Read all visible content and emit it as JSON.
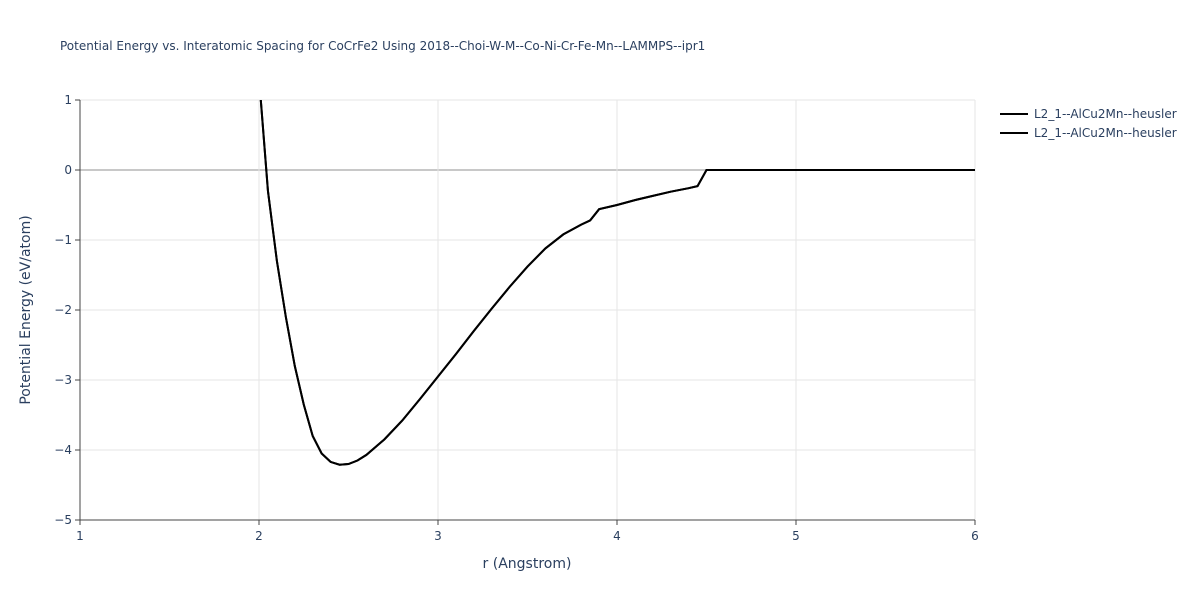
{
  "chart_data": {
    "type": "line",
    "title": "Potential Energy vs. Interatomic Spacing for CoCrFe2 Using 2018--Choi-W-M--Co-Ni-Cr-Fe-Mn--LAMMPS--ipr1",
    "x_label": "r (Angstrom)",
    "y_label": "Potential Energy (eV/atom)",
    "x": [
      2.01,
      2.05,
      2.1,
      2.15,
      2.2,
      2.25,
      2.3,
      2.35,
      2.4,
      2.45,
      2.5,
      2.55,
      2.6,
      2.7,
      2.8,
      2.9,
      3.0,
      3.1,
      3.2,
      3.3,
      3.4,
      3.5,
      3.6,
      3.7,
      3.8,
      3.85,
      3.9,
      4.0,
      4.1,
      4.2,
      4.3,
      4.4,
      4.45,
      4.5,
      5.0,
      5.5,
      6.0
    ],
    "series": [
      {
        "name": "L2_1--AlCu2Mn--heusler",
        "color": "#000000",
        "values": [
          1.0,
          -0.3,
          -1.3,
          -2.1,
          -2.8,
          -3.35,
          -3.8,
          -4.05,
          -4.17,
          -4.21,
          -4.2,
          -4.15,
          -4.07,
          -3.85,
          -3.58,
          -3.27,
          -2.95,
          -2.63,
          -2.3,
          -1.98,
          -1.67,
          -1.38,
          -1.12,
          -0.92,
          -0.78,
          -0.72,
          -0.56,
          -0.5,
          -0.43,
          -0.37,
          -0.31,
          -0.26,
          -0.23,
          0,
          0,
          0,
          0
        ]
      },
      {
        "name": "L2_1--AlCu2Mn--heusler",
        "color": "#000000",
        "values": [
          1.0,
          -0.3,
          -1.3,
          -2.1,
          -2.8,
          -3.35,
          -3.8,
          -4.05,
          -4.17,
          -4.21,
          -4.2,
          -4.15,
          -4.07,
          -3.85,
          -3.58,
          -3.27,
          -2.95,
          -2.63,
          -2.3,
          -1.98,
          -1.67,
          -1.38,
          -1.12,
          -0.92,
          -0.78,
          -0.72,
          -0.56,
          -0.5,
          -0.43,
          -0.37,
          -0.31,
          -0.26,
          -0.23,
          0,
          0,
          0,
          0
        ]
      }
    ],
    "xlim": [
      1,
      6
    ],
    "xticks": [
      1,
      2,
      3,
      4,
      5,
      6
    ],
    "ylim": [
      -5,
      1
    ],
    "yticks": [
      1,
      0,
      {
        "value": -1,
        "label": "−1"
      },
      {
        "value": -2,
        "label": "−2"
      },
      {
        "value": -3,
        "label": "−3"
      },
      {
        "value": -4,
        "label": "−4"
      },
      {
        "value": -5,
        "label": "−5"
      }
    ],
    "grid": true,
    "legend": "top-right"
  }
}
